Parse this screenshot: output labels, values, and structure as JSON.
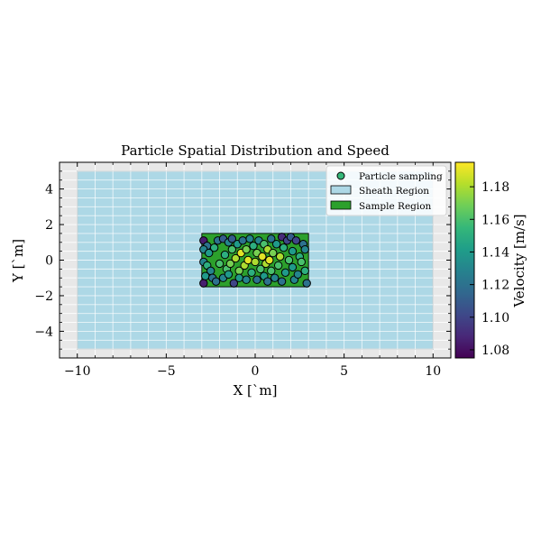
{
  "chart_data": {
    "type": "scatter",
    "title": "Particle Spatial Distribution and Speed",
    "xlabel": "X [`m]",
    "ylabel": "Y [`m]",
    "xlim": [
      -11,
      11
    ],
    "ylim": [
      -5.5,
      5.5
    ],
    "xticks": [
      -10,
      -5,
      0,
      5,
      10
    ],
    "yticks": [
      -4,
      -2,
      0,
      2,
      4
    ],
    "xtick_labels": [
      "−10",
      "−5",
      "0",
      "5",
      "10"
    ],
    "ytick_labels": [
      "−4",
      "−2",
      "0",
      "2",
      "4"
    ],
    "grid": true,
    "background_color": "#e8e8e8",
    "regions": [
      {
        "name": "Sheath Region",
        "x": [
          -10,
          10
        ],
        "y": [
          -5,
          5
        ],
        "color": "#add8e6"
      },
      {
        "name": "Sample Region",
        "x": [
          -3,
          3
        ],
        "y": [
          -1.5,
          1.5
        ],
        "color": "#2ca02c"
      }
    ],
    "series_name": "Particle sampling",
    "legend": {
      "position": "top-right",
      "entries": [
        "Particle sampling",
        "Sheath Region",
        "Sample Region"
      ]
    },
    "colorbar": {
      "label": "Velocity [m/s]",
      "range": [
        1.075,
        1.195
      ],
      "ticks": [
        1.08,
        1.1,
        1.12,
        1.14,
        1.16,
        1.18
      ],
      "tick_labels": [
        "1.08",
        "1.10",
        "1.12",
        "1.14",
        "1.16",
        "1.18"
      ],
      "colormap": "viridis",
      "colormap_stops": [
        "#440154",
        "#482878",
        "#3e4989",
        "#31688e",
        "#26828e",
        "#1f9e89",
        "#35b779",
        "#6ece58",
        "#b5de2b",
        "#fde725"
      ]
    },
    "points": [
      {
        "x": -2.9,
        "y": 1.1,
        "v": 1.085
      },
      {
        "x": -2.7,
        "y": 0.8,
        "v": 1.12
      },
      {
        "x": -2.9,
        "y": 0.6,
        "v": 1.13
      },
      {
        "x": -2.6,
        "y": 0.4,
        "v": 1.14
      },
      {
        "x": -2.9,
        "y": -0.1,
        "v": 1.13
      },
      {
        "x": -2.7,
        "y": -0.3,
        "v": 1.15
      },
      {
        "x": -2.5,
        "y": -0.6,
        "v": 1.13
      },
      {
        "x": -2.8,
        "y": -0.9,
        "v": 1.14
      },
      {
        "x": -2.9,
        "y": -1.3,
        "v": 1.085
      },
      {
        "x": -2.4,
        "y": -1.0,
        "v": 1.12
      },
      {
        "x": -2.3,
        "y": 0.7,
        "v": 1.15
      },
      {
        "x": -2.1,
        "y": 1.1,
        "v": 1.12
      },
      {
        "x": -2.0,
        "y": -0.2,
        "v": 1.16
      },
      {
        "x": -2.2,
        "y": -1.2,
        "v": 1.12
      },
      {
        "x": -1.8,
        "y": 1.2,
        "v": 1.11
      },
      {
        "x": -1.7,
        "y": 0.3,
        "v": 1.15
      },
      {
        "x": -1.6,
        "y": -0.5,
        "v": 1.16
      },
      {
        "x": -1.8,
        "y": -1.0,
        "v": 1.13
      },
      {
        "x": -1.5,
        "y": 1.0,
        "v": 1.13
      },
      {
        "x": -1.4,
        "y": -0.2,
        "v": 1.17
      },
      {
        "x": -1.3,
        "y": 0.6,
        "v": 1.16
      },
      {
        "x": -1.5,
        "y": -0.8,
        "v": 1.14
      },
      {
        "x": -1.3,
        "y": 1.2,
        "v": 1.11
      },
      {
        "x": -1.2,
        "y": -1.3,
        "v": 1.1
      },
      {
        "x": -1.1,
        "y": 0.1,
        "v": 1.18
      },
      {
        "x": -1.0,
        "y": 0.9,
        "v": 1.14
      },
      {
        "x": -0.9,
        "y": -0.6,
        "v": 1.17
      },
      {
        "x": -0.8,
        "y": 0.4,
        "v": 1.19
      },
      {
        "x": -0.9,
        "y": -1.0,
        "v": 1.14
      },
      {
        "x": -0.7,
        "y": 1.1,
        "v": 1.12
      },
      {
        "x": -0.6,
        "y": -0.3,
        "v": 1.18
      },
      {
        "x": -0.5,
        "y": 0.6,
        "v": 1.17
      },
      {
        "x": -0.5,
        "y": -1.1,
        "v": 1.13
      },
      {
        "x": -0.4,
        "y": 0.0,
        "v": 1.19
      },
      {
        "x": -0.3,
        "y": 1.2,
        "v": 1.13
      },
      {
        "x": -0.2,
        "y": -0.7,
        "v": 1.15
      },
      {
        "x": -0.1,
        "y": 0.8,
        "v": 1.15
      },
      {
        "x": 0.0,
        "y": -0.1,
        "v": 1.18
      },
      {
        "x": 0.1,
        "y": 0.4,
        "v": 1.17
      },
      {
        "x": 0.1,
        "y": -1.1,
        "v": 1.12
      },
      {
        "x": 0.2,
        "y": 1.1,
        "v": 1.13
      },
      {
        "x": 0.3,
        "y": -0.5,
        "v": 1.16
      },
      {
        "x": 0.4,
        "y": 0.2,
        "v": 1.19
      },
      {
        "x": 0.5,
        "y": 0.9,
        "v": 1.16
      },
      {
        "x": 0.5,
        "y": -0.9,
        "v": 1.14
      },
      {
        "x": 0.6,
        "y": -0.2,
        "v": 1.18
      },
      {
        "x": 0.7,
        "y": 0.6,
        "v": 1.18
      },
      {
        "x": 0.7,
        "y": -1.2,
        "v": 1.12
      },
      {
        "x": 0.8,
        "y": 0.0,
        "v": 1.19
      },
      {
        "x": 0.9,
        "y": -0.6,
        "v": 1.16
      },
      {
        "x": 0.9,
        "y": 1.2,
        "v": 1.12
      },
      {
        "x": 1.0,
        "y": 0.4,
        "v": 1.17
      },
      {
        "x": 1.1,
        "y": -1.0,
        "v": 1.13
      },
      {
        "x": 1.2,
        "y": 0.9,
        "v": 1.14
      },
      {
        "x": 1.3,
        "y": -0.3,
        "v": 1.16
      },
      {
        "x": 1.4,
        "y": 0.2,
        "v": 1.18
      },
      {
        "x": 1.5,
        "y": 1.3,
        "v": 1.09
      },
      {
        "x": 1.5,
        "y": -1.2,
        "v": 1.12
      },
      {
        "x": 1.6,
        "y": 0.7,
        "v": 1.15
      },
      {
        "x": 1.7,
        "y": -0.7,
        "v": 1.14
      },
      {
        "x": 1.8,
        "y": 1.1,
        "v": 1.1
      },
      {
        "x": 1.9,
        "y": 0.0,
        "v": 1.16
      },
      {
        "x": 2.0,
        "y": 1.3,
        "v": 1.11
      },
      {
        "x": 2.1,
        "y": -0.4,
        "v": 1.14
      },
      {
        "x": 2.1,
        "y": 0.5,
        "v": 1.14
      },
      {
        "x": 2.2,
        "y": -1.1,
        "v": 1.13
      },
      {
        "x": 2.3,
        "y": 1.1,
        "v": 1.1
      },
      {
        "x": 2.4,
        "y": -0.8,
        "v": 1.13
      },
      {
        "x": 2.5,
        "y": 0.2,
        "v": 1.15
      },
      {
        "x": 2.6,
        "y": -0.1,
        "v": 1.16
      },
      {
        "x": 2.7,
        "y": 0.9,
        "v": 1.12
      },
      {
        "x": 2.8,
        "y": -0.6,
        "v": 1.15
      },
      {
        "x": 2.8,
        "y": 0.6,
        "v": 1.13
      },
      {
        "x": 2.9,
        "y": -1.3,
        "v": 1.12
      }
    ]
  }
}
